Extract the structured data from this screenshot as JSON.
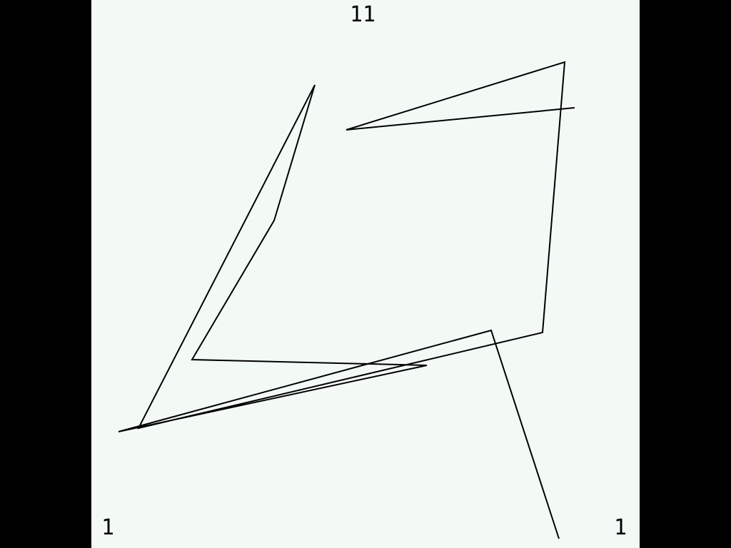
{
  "labels": {
    "top": "11",
    "bottom_left": "1",
    "bottom_right": "1"
  },
  "colors": {
    "background": "#f3faf6",
    "letterbox": "#000000",
    "stroke": "#000000"
  }
}
